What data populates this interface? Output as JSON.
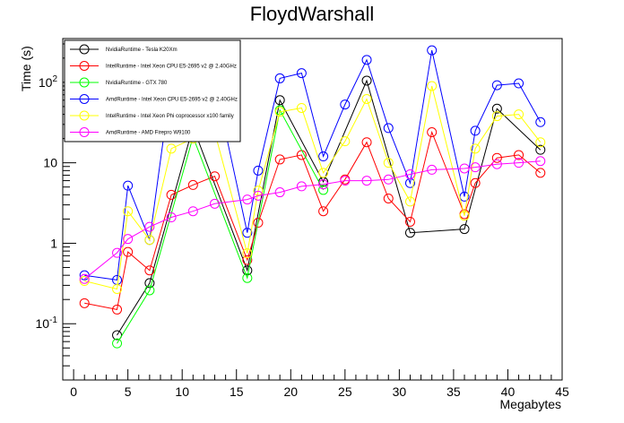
{
  "chart_data": {
    "type": "line",
    "title": "FloydWarshall",
    "xlabel": "Megabytes",
    "ylabel": "Time (s)",
    "x_scale": "linear",
    "y_scale": "log",
    "xlim": [
      -1,
      45
    ],
    "ylim": [
      0.02,
      350
    ],
    "x_ticks": [
      0,
      5,
      10,
      15,
      20,
      25,
      30,
      35,
      40,
      45
    ],
    "y_ticks": [
      {
        "value": 0.1,
        "base": "10",
        "exp": "-1"
      },
      {
        "value": 1,
        "label": "1"
      },
      {
        "value": 10,
        "label": "10"
      },
      {
        "value": 100,
        "base": "10",
        "exp": "2"
      }
    ],
    "legend_position": "top-left",
    "grid": false,
    "series": [
      {
        "name": "NvidiaRuntime - Tesla K20Xm",
        "color": "#000000",
        "points": [
          [
            4,
            0.072
          ],
          [
            7,
            0.32
          ],
          [
            11,
            28
          ],
          [
            16,
            0.46
          ],
          [
            19,
            60
          ],
          [
            23,
            5.8
          ],
          [
            27,
            105
          ],
          [
            31,
            1.35
          ],
          [
            36,
            1.5
          ],
          [
            39,
            47
          ],
          [
            43,
            14.5
          ]
        ]
      },
      {
        "name": "IntelRuntime - Intel Xeon CPU E5-2695 v2 @ 2.40GHz",
        "color": "#ff0000",
        "points": [
          [
            1,
            0.18
          ],
          [
            4,
            0.15
          ],
          [
            5,
            0.78
          ],
          [
            7,
            0.46
          ],
          [
            9,
            4.0
          ],
          [
            11,
            5.3
          ],
          [
            13,
            6.8
          ],
          [
            16,
            0.62
          ],
          [
            17,
            1.8
          ],
          [
            19,
            11.0
          ],
          [
            21,
            12.5
          ],
          [
            23,
            2.5
          ],
          [
            25,
            6.2
          ],
          [
            27,
            18.0
          ],
          [
            29,
            3.6
          ],
          [
            31,
            1.85
          ],
          [
            33,
            24.0
          ],
          [
            36,
            2.3
          ],
          [
            37,
            5.6
          ],
          [
            39,
            11.5
          ],
          [
            41,
            12.5
          ],
          [
            43,
            7.5
          ]
        ]
      },
      {
        "name": "NvidiaRuntime - GTX 780",
        "color": "#00ff00",
        "points": [
          [
            4,
            0.057
          ],
          [
            7,
            0.26
          ],
          [
            11,
            21
          ],
          [
            16,
            0.37
          ],
          [
            19,
            45
          ],
          [
            23,
            4.6
          ]
        ]
      },
      {
        "name": "AmdRuntime - Intel Xeon CPU E5-2695 v2 @ 2.40GHz",
        "color": "#0000ff",
        "points": [
          [
            1,
            0.4
          ],
          [
            4,
            0.35
          ],
          [
            5,
            5.2
          ],
          [
            7,
            1.1
          ],
          [
            9,
            105
          ],
          [
            11,
            105
          ],
          [
            13,
            100
          ],
          [
            16,
            1.35
          ],
          [
            17,
            8.0
          ],
          [
            19,
            112
          ],
          [
            21,
            130
          ],
          [
            23,
            12.0
          ],
          [
            25,
            53
          ],
          [
            27,
            190
          ],
          [
            29,
            27
          ],
          [
            31,
            5.6
          ],
          [
            33,
            250
          ],
          [
            36,
            3.8
          ],
          [
            37,
            25
          ],
          [
            39,
            92
          ],
          [
            41,
            97
          ],
          [
            43,
            32
          ]
        ]
      },
      {
        "name": "IntelRuntime - Intel Xeon Phi coprocessor x100 family",
        "color": "#ffff00",
        "points": [
          [
            1,
            0.34
          ],
          [
            4,
            0.27
          ],
          [
            5,
            2.5
          ],
          [
            7,
            1.1
          ],
          [
            9,
            15
          ],
          [
            11,
            20
          ],
          [
            13,
            24
          ],
          [
            16,
            0.75
          ],
          [
            17,
            4.5
          ],
          [
            19,
            43
          ],
          [
            21,
            48
          ],
          [
            23,
            7.5
          ],
          [
            25,
            18.5
          ],
          [
            27,
            62
          ],
          [
            29,
            10
          ],
          [
            31,
            3.3
          ],
          [
            33,
            90
          ],
          [
            36,
            2.2
          ],
          [
            37,
            15
          ],
          [
            39,
            38
          ],
          [
            41,
            40
          ],
          [
            43,
            18
          ]
        ]
      },
      {
        "name": "AmdRuntime - AMD Firepro W9100",
        "color": "#ff00ff",
        "points": [
          [
            1,
            0.36
          ],
          [
            4,
            0.76
          ],
          [
            5,
            1.13
          ],
          [
            7,
            1.6
          ],
          [
            9,
            2.1
          ],
          [
            11,
            2.5
          ],
          [
            13,
            3.1
          ],
          [
            16,
            3.5
          ],
          [
            17,
            3.9
          ],
          [
            19,
            4.3
          ],
          [
            21,
            5.1
          ],
          [
            23,
            5.4
          ],
          [
            25,
            6.0
          ],
          [
            27,
            6.0
          ],
          [
            29,
            6.2
          ],
          [
            31,
            7.2
          ],
          [
            33,
            8.2
          ],
          [
            36,
            8.5
          ],
          [
            37,
            8.8
          ],
          [
            39,
            9.6
          ],
          [
            41,
            10.0
          ],
          [
            43,
            10.5
          ]
        ]
      }
    ]
  }
}
